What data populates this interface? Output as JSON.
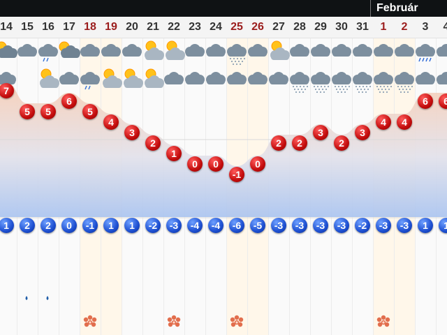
{
  "header": {
    "month_label": "Február"
  },
  "days": [
    {
      "date": "14",
      "weekend": false,
      "high": "7",
      "low": "1",
      "icons": [
        "partly-cloudy-icon",
        "cloud-drizzle-icon"
      ],
      "extra": ""
    },
    {
      "date": "15",
      "weekend": false,
      "high": "5",
      "low": "2",
      "icons": [
        "cloud-icon"
      ],
      "extra": "raindrop-icon"
    },
    {
      "date": "16",
      "weekend": false,
      "high": "5",
      "low": "2",
      "icons": [
        "cloud-drizzle-icon",
        "sun-cloud-icon"
      ],
      "extra": "raindrop-icon"
    },
    {
      "date": "17",
      "weekend": false,
      "high": "6",
      "low": "0",
      "icons": [
        "partly-cloudy-icon",
        "cloud-icon"
      ],
      "extra": ""
    },
    {
      "date": "18",
      "weekend": true,
      "high": "5",
      "low": "-1",
      "icons": [
        "cloud-icon",
        "cloud-drizzle-icon"
      ],
      "extra": "flower-icon"
    },
    {
      "date": "19",
      "weekend": true,
      "high": "4",
      "low": "1",
      "icons": [
        "cloud-icon",
        "sun-cloud-icon"
      ],
      "extra": ""
    },
    {
      "date": "20",
      "weekend": false,
      "high": "3",
      "low": "1",
      "icons": [
        "cloud-icon",
        "sun-cloud-icon"
      ],
      "extra": ""
    },
    {
      "date": "21",
      "weekend": false,
      "high": "2",
      "low": "-2",
      "icons": [
        "sun-cloud-icon",
        "sun-cloud-icon"
      ],
      "extra": ""
    },
    {
      "date": "22",
      "weekend": false,
      "high": "1",
      "low": "-3",
      "icons": [
        "sun-cloud-icon",
        "cloud-icon"
      ],
      "extra": "flower-icon"
    },
    {
      "date": "23",
      "weekend": false,
      "high": "0",
      "low": "-4",
      "icons": [
        "cloud-icon",
        "cloud-icon"
      ],
      "extra": ""
    },
    {
      "date": "24",
      "weekend": false,
      "high": "0",
      "low": "-4",
      "icons": [
        "cloud-icon",
        "cloud-icon"
      ],
      "extra": ""
    },
    {
      "date": "25",
      "weekend": true,
      "high": "-1",
      "low": "-6",
      "icons": [
        "cloud-snow-icon",
        "cloud-icon"
      ],
      "extra": "flower-icon"
    },
    {
      "date": "26",
      "weekend": true,
      "high": "0",
      "low": "-5",
      "icons": [
        "cloud-icon",
        "cloud-icon"
      ],
      "extra": ""
    },
    {
      "date": "27",
      "weekend": false,
      "high": "2",
      "low": "-3",
      "icons": [
        "sun-cloud-icon",
        "cloud-icon"
      ],
      "extra": ""
    },
    {
      "date": "28",
      "weekend": false,
      "high": "2",
      "low": "-3",
      "icons": [
        "cloud-icon",
        "cloud-snow-icon"
      ],
      "extra": ""
    },
    {
      "date": "29",
      "weekend": false,
      "high": "3",
      "low": "-3",
      "icons": [
        "cloud-icon",
        "cloud-snow-icon"
      ],
      "extra": ""
    },
    {
      "date": "30",
      "weekend": false,
      "high": "2",
      "low": "-3",
      "icons": [
        "cloud-icon",
        "cloud-snow-icon"
      ],
      "extra": ""
    },
    {
      "date": "31",
      "weekend": false,
      "high": "3",
      "low": "-2",
      "icons": [
        "cloud-icon",
        "cloud-snow-icon"
      ],
      "extra": ""
    },
    {
      "date": "1",
      "weekend": true,
      "high": "4",
      "low": "-3",
      "icons": [
        "cloud-icon",
        "cloud-snow-icon"
      ],
      "extra": "flower-icon"
    },
    {
      "date": "2",
      "weekend": true,
      "high": "4",
      "low": "-3",
      "icons": [
        "cloud-icon",
        "cloud-snow-icon"
      ],
      "extra": ""
    },
    {
      "date": "3",
      "weekend": false,
      "high": "6",
      "low": "1",
      "icons": [
        "cloud-rain-icon",
        "cloud-icon"
      ],
      "extra": ""
    },
    {
      "date": "4",
      "weekend": false,
      "high": "6",
      "low": "1",
      "icons": [
        "cloud-icon",
        "cloud-icon"
      ],
      "extra": ""
    }
  ],
  "colors": {
    "high_badge": "#cc1111",
    "low_badge": "#1d4fd1",
    "weekend_text": "#9b1d1d",
    "header_bg": "#0f1214"
  }
}
